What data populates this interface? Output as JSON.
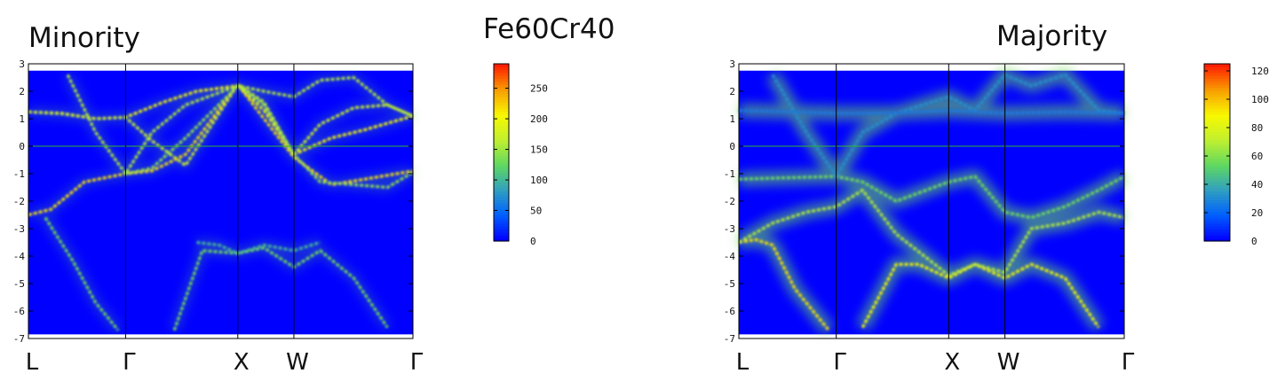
{
  "title": "Fe60Cr40",
  "colors": {
    "background": "#0000ff",
    "fermi_line": "#2fb52f",
    "colormap": [
      "#0000ff",
      "#0060ff",
      "#30a0c0",
      "#60d860",
      "#c0f030",
      "#f8f800",
      "#f8a000",
      "#ff2000"
    ]
  },
  "chart_data": [
    {
      "type": "heatmap",
      "title": "Minority",
      "ylim": [
        -7,
        3
      ],
      "yticks": [
        "3",
        "2",
        "1",
        "0",
        "-1",
        "-2",
        "-3",
        "-4",
        "-5",
        "-6",
        "-7"
      ],
      "kpoints": [
        "L",
        "Γ",
        "X",
        "W",
        "Γ"
      ],
      "kpath_positions": [
        0,
        0.866,
        1.866,
        2.366,
        3.427
      ],
      "fermi_energy": 0,
      "colorbar": {
        "min": 0,
        "max": 290,
        "ticks": [
          "250",
          "200",
          "150",
          "100",
          "50",
          "0"
        ]
      },
      "bands": [
        {
          "x": [
            0,
            0.3,
            0.6,
            0.866,
            1.2,
            1.5,
            1.866,
            2.1,
            2.366,
            2.7,
            3.0,
            3.427
          ],
          "y": [
            1.25,
            1.2,
            1.0,
            1.05,
            1.6,
            2.0,
            2.2,
            1.3,
            -0.3,
            0.3,
            0.6,
            1.1
          ],
          "intensity": 0.7
        },
        {
          "x": [
            0,
            0.3,
            0.6,
            0.866,
            1.1,
            1.4,
            1.866,
            2.1,
            2.366,
            2.6,
            2.9,
            3.2,
            3.427
          ],
          "y": [
            1.25,
            1.18,
            1.0,
            1.05,
            0.2,
            -0.7,
            2.25,
            1.6,
            -0.3,
            0.8,
            1.4,
            1.5,
            1.1
          ],
          "intensity": 0.6
        },
        {
          "x": [
            0,
            0.2,
            0.5,
            0.866,
            1.1,
            1.4,
            1.866,
            2.1,
            2.366,
            2.7,
            3.0,
            3.427
          ],
          "y": [
            -2.5,
            -2.3,
            -1.3,
            -1.0,
            -0.9,
            -0.3,
            2.25,
            1.0,
            -0.4,
            -1.4,
            -1.2,
            -0.9
          ],
          "intensity": 0.75
        },
        {
          "x": [
            0.35,
            0.6,
            0.866,
            1.1,
            1.4,
            1.866,
            2.1,
            2.366,
            2.6,
            2.9,
            3.2,
            3.427
          ],
          "y": [
            2.6,
            0.5,
            -1.0,
            0.5,
            1.5,
            2.2,
            2.0,
            1.8,
            2.4,
            2.5,
            1.5,
            1.1
          ],
          "intensity": 0.55
        },
        {
          "x": [
            0.866,
            1.1,
            1.4,
            1.866,
            2.1,
            2.366,
            2.6,
            2.9,
            3.2,
            3.427
          ],
          "y": [
            -1.0,
            -0.8,
            0.3,
            2.2,
            1.5,
            -0.3,
            -1.3,
            -1.4,
            -1.5,
            -0.95
          ],
          "intensity": 0.5
        },
        {
          "x": [
            0.15,
            0.4,
            0.6,
            0.8
          ],
          "y": [
            -2.6,
            -4.2,
            -5.7,
            -6.7
          ],
          "intensity": 0.45
        },
        {
          "x": [
            1.3,
            1.55,
            1.866,
            2.1,
            2.366,
            2.6,
            2.9,
            3.2
          ],
          "y": [
            -6.7,
            -3.8,
            -3.9,
            -3.7,
            -4.4,
            -3.8,
            -4.8,
            -6.6
          ],
          "intensity": 0.45
        },
        {
          "x": [
            1.5,
            1.7,
            1.866,
            2.1,
            2.366,
            2.6
          ],
          "y": [
            -3.5,
            -3.6,
            -3.9,
            -3.6,
            -3.8,
            -3.5
          ],
          "intensity": 0.35
        }
      ]
    },
    {
      "type": "heatmap",
      "title": "Majority",
      "ylim": [
        -7,
        3
      ],
      "yticks": [
        "3",
        "2",
        "1",
        "0",
        "-1",
        "-2",
        "-3",
        "-4",
        "-5",
        "-6",
        "-7"
      ],
      "kpoints": [
        "L",
        "Γ",
        "X",
        "W",
        "Γ"
      ],
      "kpath_positions": [
        0,
        0.866,
        1.866,
        2.366,
        3.427
      ],
      "fermi_energy": 0,
      "colorbar": {
        "min": 0,
        "max": 125,
        "ticks": [
          "120",
          "100",
          "80",
          "60",
          "40",
          "20",
          "0"
        ]
      },
      "bands": [
        {
          "x": [
            0,
            0.15,
            0.3,
            0.5,
            0.8
          ],
          "y": [
            -3.5,
            -3.4,
            -3.6,
            -5.2,
            -6.7
          ],
          "intensity": 0.75
        },
        {
          "x": [
            1.1,
            1.4,
            1.6,
            1.866,
            2.1,
            2.366,
            2.6,
            2.9,
            3.2
          ],
          "y": [
            -6.6,
            -4.3,
            -4.3,
            -4.8,
            -4.3,
            -4.8,
            -4.3,
            -4.8,
            -6.6
          ],
          "intensity": 0.7
        },
        {
          "x": [
            0,
            0.3,
            0.6,
            0.866,
            1.1,
            1.4,
            1.866,
            2.1,
            2.366,
            2.6,
            2.9,
            3.2,
            3.427
          ],
          "y": [
            -3.5,
            -2.8,
            -2.4,
            -2.2,
            -1.6,
            -3.2,
            -4.7,
            -4.3,
            -4.6,
            -3.0,
            -2.8,
            -2.4,
            -2.6
          ],
          "intensity": 0.55
        },
        {
          "x": [
            0,
            0.4,
            0.866,
            1.1,
            1.4,
            1.866,
            2.1,
            2.366,
            2.6,
            2.9,
            3.2,
            3.427
          ],
          "y": [
            -1.2,
            -1.15,
            -1.1,
            -1.3,
            -2.0,
            -1.3,
            -1.1,
            -2.4,
            -2.6,
            -2.2,
            -1.6,
            -1.1
          ],
          "intensity": 0.45
        },
        {
          "x": [
            0.3,
            0.6,
            0.866,
            1.1,
            1.4,
            1.866,
            2.1,
            2.366,
            2.6,
            2.9,
            3.2,
            3.427
          ],
          "y": [
            2.6,
            0.5,
            -1.1,
            0.5,
            1.2,
            1.8,
            1.3,
            2.6,
            2.2,
            2.6,
            1.3,
            1.2
          ],
          "intensity": 0.25
        },
        {
          "x": [
            0,
            0.5,
            0.866,
            1.3,
            1.866,
            2.366,
            2.9,
            3.427
          ],
          "y": [
            1.3,
            1.25,
            1.2,
            1.2,
            1.3,
            1.2,
            1.25,
            1.2
          ],
          "intensity": 0.2
        }
      ]
    }
  ]
}
